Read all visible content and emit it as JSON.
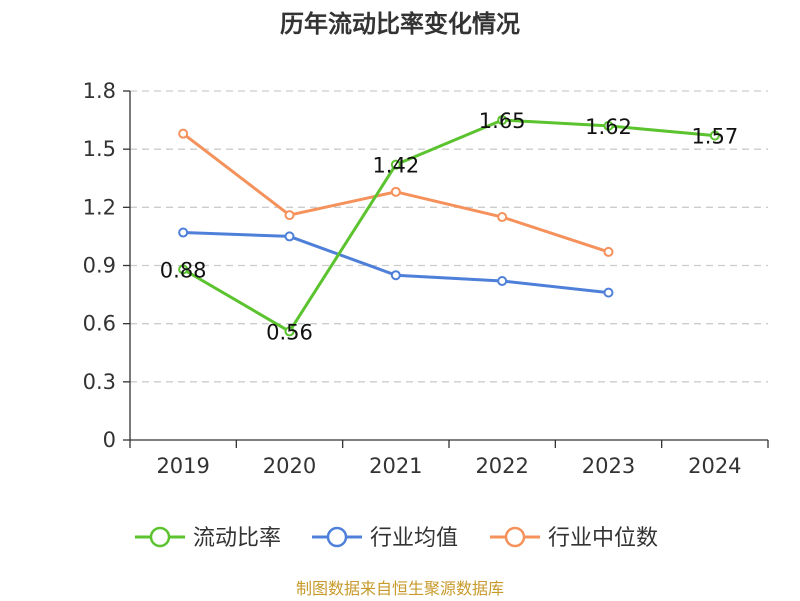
{
  "chart_data": {
    "type": "line",
    "title": "历年流动比率变化情况",
    "categories": [
      "2019",
      "2020",
      "2021",
      "2022",
      "2023",
      "2024"
    ],
    "ylim": [
      0,
      1.8
    ],
    "yticks": [
      "0",
      "0.3",
      "0.6",
      "0.9",
      "1.2",
      "1.5",
      "1.8"
    ],
    "grid": true,
    "legend_position": "bottom",
    "series": [
      {
        "name": "流动比率",
        "color": "#5bc32e",
        "values": [
          0.88,
          0.56,
          1.42,
          1.65,
          1.62,
          1.57
        ],
        "labels": [
          "0.88",
          "0.56",
          "1.42",
          "1.65",
          "1.62",
          "1.57"
        ]
      },
      {
        "name": "行业均值",
        "color": "#4f80d9",
        "values": [
          1.07,
          1.05,
          0.85,
          0.82,
          0.76,
          null
        ]
      },
      {
        "name": "行业中位数",
        "color": "#f5915b",
        "values": [
          1.58,
          1.16,
          1.28,
          1.15,
          0.97,
          null
        ]
      }
    ]
  },
  "footer": {
    "source": "制图数据来自恒生聚源数据库"
  }
}
